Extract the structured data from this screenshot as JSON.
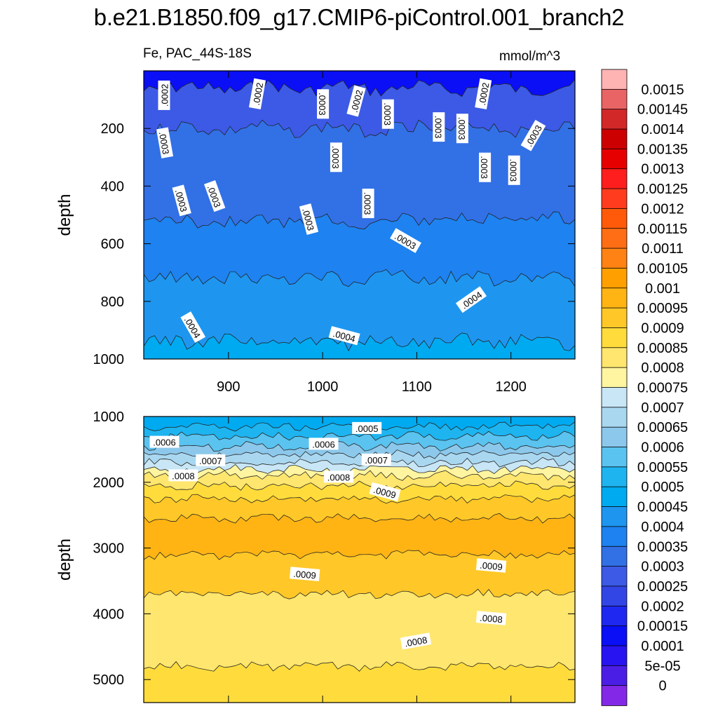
{
  "title": "b.e21.B1850.f09_g17.CMIP6-piControl.001_branch2",
  "left_label": "Fe, PAC_44S-18S",
  "right_label": "mmol/m^3",
  "chart_data": [
    {
      "type": "heatmap",
      "panel": "upper",
      "variable": "Fe",
      "region": "PAC_44S-18S",
      "units": "mmol/m^3",
      "ylabel": "depth",
      "xlim": [
        810,
        1268
      ],
      "ylim": [
        1000,
        0
      ],
      "xticks": [
        900,
        1000,
        1100,
        1200
      ],
      "yticks": [
        200,
        400,
        600,
        800,
        1000
      ],
      "bands": [
        {
          "depth_top": 0,
          "depth_bottom": 60,
          "value": 0.0001
        },
        {
          "depth_top": 60,
          "depth_bottom": 200,
          "value": 0.00025
        },
        {
          "depth_top": 200,
          "depth_bottom": 520,
          "value": 0.0003
        },
        {
          "depth_top": 520,
          "depth_bottom": 720,
          "value": 0.00035
        },
        {
          "depth_top": 720,
          "depth_bottom": 940,
          "value": 0.0004
        },
        {
          "depth_top": 940,
          "depth_bottom": 1000,
          "value": 0.00045
        }
      ],
      "contour_labels": [
        {
          "text": ".0002",
          "x": 832,
          "depth": 85,
          "angle": -90
        },
        {
          "text": ".0002",
          "x": 931,
          "depth": 80,
          "angle": -80
        },
        {
          "text": ".0003",
          "x": 1000,
          "depth": 115,
          "angle": 90
        },
        {
          "text": ".0002",
          "x": 1036,
          "depth": 105,
          "angle": -75
        },
        {
          "text": ".0003",
          "x": 1069,
          "depth": 150,
          "angle": 90
        },
        {
          "text": ".0002",
          "x": 1171,
          "depth": 80,
          "angle": -80
        },
        {
          "text": ".0003",
          "x": 832,
          "depth": 250,
          "angle": 80
        },
        {
          "text": ".0003",
          "x": 1014,
          "depth": 300,
          "angle": 90
        },
        {
          "text": ".0003",
          "x": 1123,
          "depth": 195,
          "angle": 90
        },
        {
          "text": ".0003",
          "x": 1148,
          "depth": 200,
          "angle": 90
        },
        {
          "text": ".0003",
          "x": 1224,
          "depth": 225,
          "angle": -60
        },
        {
          "text": ".0003",
          "x": 1172,
          "depth": 335,
          "angle": 90
        },
        {
          "text": ".0003",
          "x": 1203,
          "depth": 345,
          "angle": 90
        },
        {
          "text": ".0003",
          "x": 850,
          "depth": 450,
          "angle": 75
        },
        {
          "text": ".0003",
          "x": 885,
          "depth": 435,
          "angle": 70
        },
        {
          "text": ".0003",
          "x": 985,
          "depth": 515,
          "angle": 75
        },
        {
          "text": ".0003",
          "x": 1048,
          "depth": 460,
          "angle": 90
        },
        {
          "text": ".0003",
          "x": 1088,
          "depth": 590,
          "angle": 30
        },
        {
          "text": ".0004",
          "x": 1158,
          "depth": 795,
          "angle": -35
        },
        {
          "text": ".0004",
          "x": 862,
          "depth": 890,
          "angle": 60
        },
        {
          "text": ".0004",
          "x": 1023,
          "depth": 920,
          "angle": 15
        }
      ]
    },
    {
      "type": "heatmap",
      "panel": "lower",
      "variable": "Fe",
      "ylabel": "depth",
      "xlim": [
        810,
        1268
      ],
      "ylim": [
        5350,
        1000
      ],
      "xticks": [
        900,
        1000,
        1100,
        1200
      ],
      "yticks": [
        1000,
        2000,
        3000,
        4000,
        5000
      ],
      "bands": [
        {
          "depth_top": 1000,
          "depth_bottom": 1150,
          "value": 0.00045
        },
        {
          "depth_top": 1150,
          "depth_bottom": 1300,
          "value": 0.0005
        },
        {
          "depth_top": 1300,
          "depth_bottom": 1450,
          "value": 0.00055
        },
        {
          "depth_top": 1450,
          "depth_bottom": 1580,
          "value": 0.0006
        },
        {
          "depth_top": 1580,
          "depth_bottom": 1700,
          "value": 0.00065
        },
        {
          "depth_top": 1700,
          "depth_bottom": 1800,
          "value": 0.0007
        },
        {
          "depth_top": 1800,
          "depth_bottom": 1900,
          "value": 0.00075
        },
        {
          "depth_top": 1900,
          "depth_bottom": 2050,
          "value": 0.0008
        },
        {
          "depth_top": 2050,
          "depth_bottom": 2250,
          "value": 0.00085
        },
        {
          "depth_top": 2250,
          "depth_bottom": 2550,
          "value": 0.0009
        },
        {
          "depth_top": 2550,
          "depth_bottom": 3100,
          "value": 0.00095
        },
        {
          "depth_top": 3100,
          "depth_bottom": 3700,
          "value": 0.0009
        },
        {
          "depth_top": 3700,
          "depth_bottom": 4800,
          "value": 0.0008
        },
        {
          "depth_top": 4800,
          "depth_bottom": 5350,
          "value": 0.00085
        }
      ],
      "contour_labels": [
        {
          "text": ".0005",
          "x": 1047,
          "depth": 1180,
          "angle": 0
        },
        {
          "text": ".0006",
          "x": 832,
          "depth": 1390,
          "angle": 0
        },
        {
          "text": ".0006",
          "x": 1001,
          "depth": 1420,
          "angle": 0
        },
        {
          "text": ".0007",
          "x": 1057,
          "depth": 1660,
          "angle": 0
        },
        {
          "text": ".0007",
          "x": 881,
          "depth": 1670,
          "angle": 0
        },
        {
          "text": ".0008",
          "x": 852,
          "depth": 1900,
          "angle": 0
        },
        {
          "text": ".0008",
          "x": 1017,
          "depth": 1920,
          "angle": 0
        },
        {
          "text": ".0009",
          "x": 1066,
          "depth": 2150,
          "angle": 15
        },
        {
          "text": ".0009",
          "x": 1179,
          "depth": 3270,
          "angle": 5
        },
        {
          "text": ".0009",
          "x": 981,
          "depth": 3400,
          "angle": 5
        },
        {
          "text": ".0008",
          "x": 1179,
          "depth": 4070,
          "angle": 5
        },
        {
          "text": ".0008",
          "x": 1099,
          "depth": 4420,
          "angle": -10
        }
      ]
    }
  ],
  "colorbar": {
    "levels": [
      "0.0015",
      "0.00145",
      "0.0014",
      "0.00135",
      "0.0013",
      "0.00125",
      "0.0012",
      "0.00115",
      "0.0011",
      "0.00105",
      "0.001",
      "0.00095",
      "0.0009",
      "0.00085",
      "0.0008",
      "0.00075",
      "0.0007",
      "0.00065",
      "0.0006",
      "0.00055",
      "0.0005",
      "0.00045",
      "0.0004",
      "0.00035",
      "0.0003",
      "0.00025",
      "0.0002",
      "0.00015",
      "0.0001",
      "5e-05",
      "0"
    ],
    "colors": [
      "#ffb4b4",
      "#e96464",
      "#d22828",
      "#cc0000",
      "#e60000",
      "#ff1e1e",
      "#ff3c1e",
      "#ff5a0a",
      "#ff6e14",
      "#ff8214",
      "#ffa000",
      "#ffb414",
      "#ffc828",
      "#ffdc3c",
      "#ffe66e",
      "#fff5a0",
      "#c8e6f5",
      "#aad7f0",
      "#8cc8eb",
      "#5ac3f0",
      "#1eb4f0",
      "#00aaf0",
      "#1e96f0",
      "#1e82f0",
      "#3270e6",
      "#3c5ae6",
      "#3246e6",
      "#1e28f0",
      "#0a0ff5",
      "#2814f0",
      "#4b1ee6",
      "#8228e6"
    ]
  }
}
